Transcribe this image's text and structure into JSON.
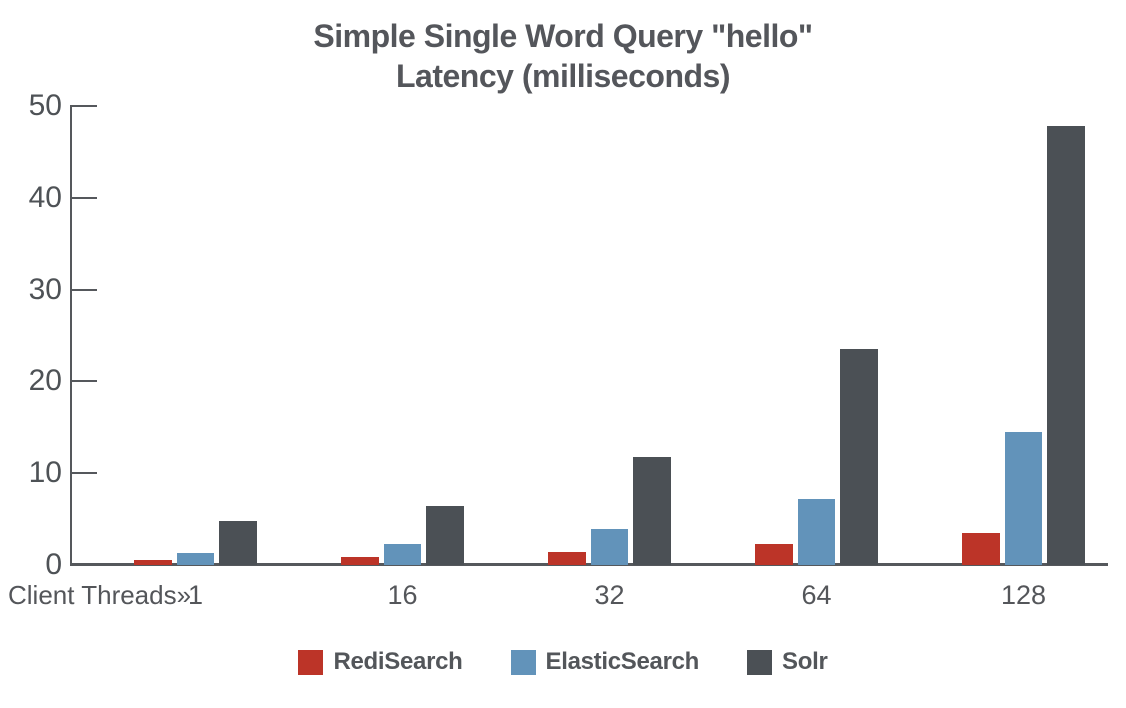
{
  "chart_data": {
    "type": "bar",
    "title": "Simple Single Word Query \"hello\"",
    "subtitle": "Latency (milliseconds)",
    "x_axis_label": "Client Threads»",
    "categories": [
      "1",
      "16",
      "32",
      "64",
      "128"
    ],
    "series": [
      {
        "name": "RediSearch",
        "color": "#bc3428",
        "values": [
          0.5,
          0.9,
          1.4,
          2.3,
          3.5
        ]
      },
      {
        "name": "ElasticSearch",
        "color": "#6293ba",
        "values": [
          1.3,
          2.3,
          3.9,
          7.2,
          14.5
        ]
      },
      {
        "name": "Solr",
        "color": "#4b5055",
        "values": [
          4.8,
          6.4,
          11.8,
          23.5,
          47.8
        ]
      }
    ],
    "ylim": [
      0,
      50
    ],
    "yticks": [
      0,
      10,
      20,
      30,
      40,
      50
    ],
    "grid": false,
    "legend_position": "bottom",
    "text_color": "#54565a",
    "axis_color": "#55585c"
  }
}
